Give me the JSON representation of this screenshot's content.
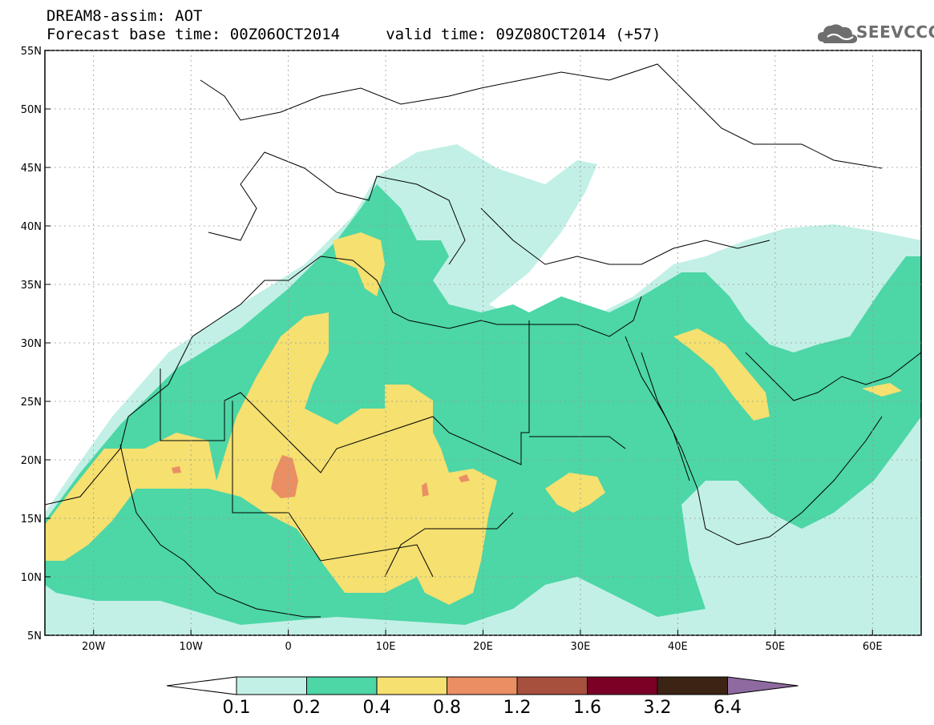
{
  "header": {
    "title_line1": "DREAM8-assim: AOT",
    "title_line2": "Forecast base time: 00Z06OCT2014     valid time: 09Z08OCT2014 (+57)",
    "logo_text": "SEEVCCC",
    "logo_icon": "cloud-icon"
  },
  "map": {
    "lon_range": [
      -25,
      65
    ],
    "lat_range": [
      5,
      55
    ],
    "lon_ticks": [
      {
        "value": -20,
        "label": "20W"
      },
      {
        "value": -10,
        "label": "10W"
      },
      {
        "value": 0,
        "label": "0"
      },
      {
        "value": 10,
        "label": "10E"
      },
      {
        "value": 20,
        "label": "20E"
      },
      {
        "value": 30,
        "label": "30E"
      },
      {
        "value": 40,
        "label": "40E"
      },
      {
        "value": 50,
        "label": "50E"
      },
      {
        "value": 60,
        "label": "60E"
      }
    ],
    "lat_ticks": [
      {
        "value": 5,
        "label": "5N"
      },
      {
        "value": 10,
        "label": "10N"
      },
      {
        "value": 15,
        "label": "15N"
      },
      {
        "value": 20,
        "label": "20N"
      },
      {
        "value": 25,
        "label": "25N"
      },
      {
        "value": 30,
        "label": "30N"
      },
      {
        "value": 35,
        "label": "35N"
      },
      {
        "value": 40,
        "label": "40N"
      },
      {
        "value": 45,
        "label": "45N"
      },
      {
        "value": 50,
        "label": "50N"
      },
      {
        "value": 55,
        "label": "55N"
      }
    ]
  },
  "colorbar": {
    "levels": [
      "0.1",
      "0.2",
      "0.4",
      "0.8",
      "1.2",
      "1.6",
      "3.2",
      "6.4"
    ],
    "colors": [
      "#ffffff",
      "#c2f0e6",
      "#4dd6a6",
      "#f5e070",
      "#ea8f64",
      "#a8503e",
      "#7a0026",
      "#3c2415",
      "#8e6aa0"
    ]
  }
}
